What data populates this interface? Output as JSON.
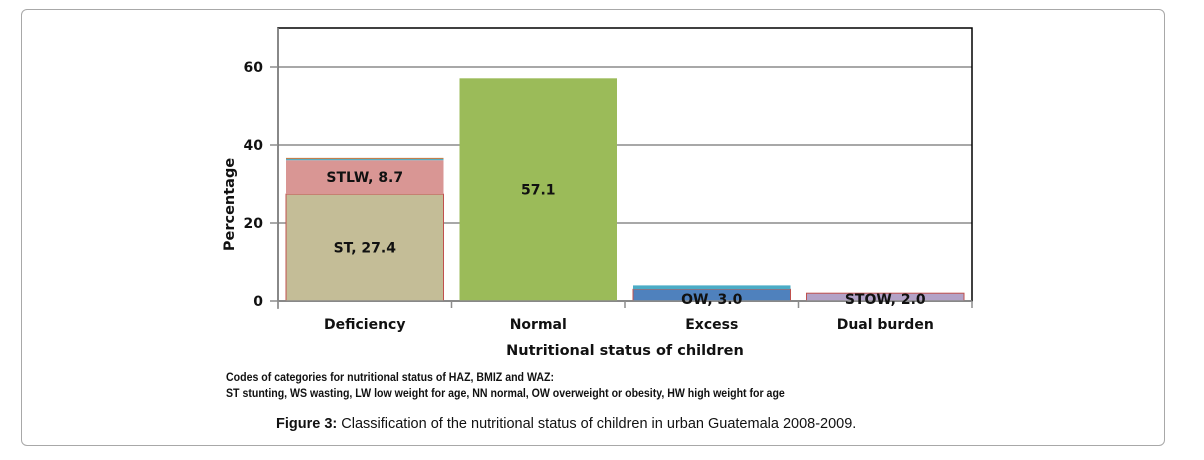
{
  "chart_data": {
    "type": "bar",
    "stacked": true,
    "title": "",
    "xlabel": "Nutritional status of children",
    "ylabel": "Percentage",
    "ylim": [
      0,
      70
    ],
    "yticks": [
      0,
      20,
      40,
      60
    ],
    "grid": true,
    "categories": [
      "Deficiency",
      "Normal",
      "Excess",
      "Dual burden"
    ],
    "stacks": [
      {
        "category": "Deficiency",
        "segments": [
          {
            "code": "ST",
            "value": 27.4,
            "label": "ST, 27.4",
            "color": "#c4bd97"
          },
          {
            "code": "STLW",
            "value": 8.7,
            "label": "STLW, 8.7",
            "color": "#d99694"
          },
          {
            "code": "WS",
            "value": 0.3,
            "label": "",
            "color": "#4bacc6"
          },
          {
            "code": "LW",
            "value": 0.3,
            "label": "",
            "color": "#c0804d"
          }
        ]
      },
      {
        "category": "Normal",
        "segments": [
          {
            "code": "NN",
            "value": 57.1,
            "label": "57.1",
            "color": "#9bbb59"
          }
        ]
      },
      {
        "category": "Excess",
        "segments": [
          {
            "code": "OW",
            "value": 3.0,
            "label": "OW, 3.0",
            "color": "#4f81bd"
          },
          {
            "code": "HW",
            "value": 1.0,
            "label": "",
            "color": "#4bacc6"
          }
        ]
      },
      {
        "category": "Dual burden",
        "segments": [
          {
            "code": "STOW",
            "value": 2.0,
            "label": "STOW, 2.0",
            "color": "#b3a2c7"
          }
        ]
      }
    ]
  },
  "notes": {
    "line1": "Codes of categories for nutritional status of HAZ, BMIZ and WAZ:",
    "line2": "ST stunting, WS wasting, LW low weight for age, NN normal, OW overweight or obesity, HW high weight for age"
  },
  "caption": {
    "label": "Figure 3:",
    "text": " Classification of the nutritional status of children in urban Guatemala 2008-2009."
  }
}
